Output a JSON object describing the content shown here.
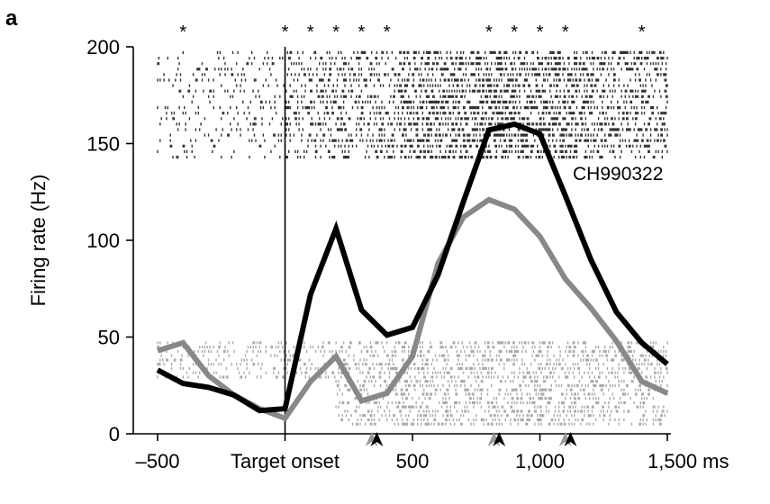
{
  "panel_label": "a",
  "chart_data": {
    "type": "line",
    "title": "",
    "xlabel": "",
    "ylabel": "Firing rate (Hz)",
    "x_unit": "ms",
    "xlim": [
      -500,
      1500
    ],
    "ylim": [
      0,
      200
    ],
    "x_ticks": [
      -500,
      0,
      500,
      1000,
      1500
    ],
    "x_tick_labels": [
      "–500",
      "Target onset",
      "500",
      "1,000",
      "1,500 ms"
    ],
    "y_ticks": [
      0,
      50,
      100,
      150,
      200
    ],
    "y_tick_labels": [
      "0",
      "50",
      "100",
      "150",
      "200"
    ],
    "event_line_x": 0,
    "annotation": "CH990322",
    "significance_marker": "*",
    "significance_x": [
      -400,
      0,
      100,
      200,
      300,
      400,
      800,
      900,
      1000,
      1100,
      1400
    ],
    "series": [
      {
        "color": "#000000",
        "x": [
          -500,
          -400,
          -300,
          -200,
          -100,
          0,
          100,
          200,
          300,
          400,
          500,
          600,
          700,
          800,
          900,
          1000,
          1100,
          1200,
          1300,
          1400,
          1500
        ],
        "y": [
          33,
          26,
          24,
          20,
          12,
          13,
          72,
          106,
          64,
          51,
          55,
          82,
          120,
          157,
          160,
          155,
          123,
          90,
          63,
          47,
          36
        ]
      },
      {
        "color": "#888888",
        "x": [
          -500,
          -400,
          -300,
          -200,
          -100,
          0,
          100,
          200,
          300,
          400,
          500,
          600,
          700,
          800,
          900,
          1000,
          1100,
          1200,
          1300,
          1400,
          1500
        ],
        "y": [
          43,
          47,
          30,
          20,
          13,
          8,
          27,
          40,
          17,
          21,
          40,
          88,
          112,
          121,
          116,
          102,
          80,
          65,
          48,
          27,
          21
        ]
      }
    ],
    "event_markers": [
      {
        "x": 340,
        "color": "#999999"
      },
      {
        "x": 360,
        "color": "#000000"
      },
      {
        "x": 820,
        "color": "#999999"
      },
      {
        "x": 840,
        "color": "#000000"
      },
      {
        "x": 1100,
        "color": "#999999"
      },
      {
        "x": 1120,
        "color": "#000000"
      }
    ],
    "rasters": [
      {
        "color": "#333333",
        "y_top": 197,
        "y_bottom": 143,
        "rows": 20
      },
      {
        "color": "#aaaaaa",
        "y_top": 47,
        "y_bottom": 5,
        "rows": 20
      }
    ]
  }
}
